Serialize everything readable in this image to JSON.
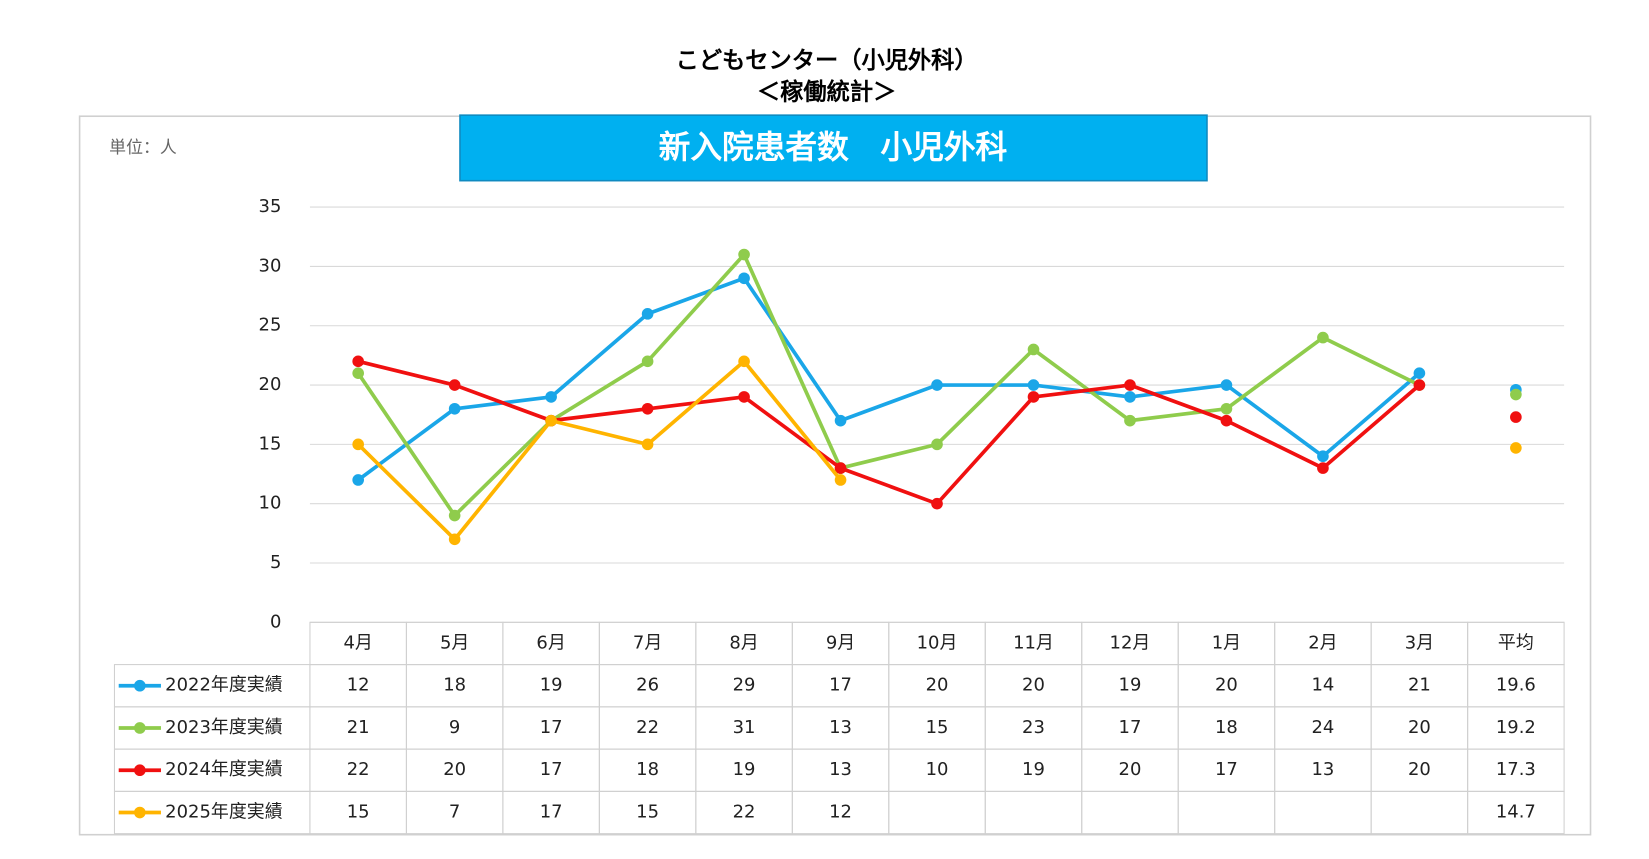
{
  "chart_data": {
    "type": "line",
    "title": "こどもセンター（小児外科）",
    "subtitle": "＜稼働統計＞",
    "banner": "新入院患者数　小児外科",
    "unit_label": "単位：人",
    "categories": [
      "4月",
      "5月",
      "6月",
      "7月",
      "8月",
      "9月",
      "10月",
      "11月",
      "12月",
      "1月",
      "2月",
      "3月"
    ],
    "average_label": "平均",
    "series": [
      {
        "name": "2022年度実績",
        "color": "#1aa6e8",
        "values": [
          12,
          18,
          19,
          26,
          29,
          17,
          20,
          20,
          19,
          20,
          14,
          21
        ],
        "average": 19.6
      },
      {
        "name": "2023年度実績",
        "color": "#8fcc4c",
        "values": [
          21,
          9,
          17,
          22,
          31,
          13,
          15,
          23,
          17,
          18,
          24,
          20
        ],
        "average": 19.2
      },
      {
        "name": "2024年度実績",
        "color": "#f01010",
        "values": [
          22,
          20,
          17,
          18,
          19,
          13,
          10,
          19,
          20,
          17,
          13,
          20
        ],
        "average": 17.3
      },
      {
        "name": "2025年度実績",
        "color": "#ffb400",
        "values": [
          15,
          7,
          17,
          15,
          22,
          12,
          null,
          null,
          null,
          null,
          null,
          null
        ],
        "average": 14.7
      }
    ],
    "ylim": [
      0,
      35
    ],
    "yticks": [
      0,
      5,
      10,
      15,
      20,
      25,
      30,
      35
    ],
    "grid": true
  }
}
